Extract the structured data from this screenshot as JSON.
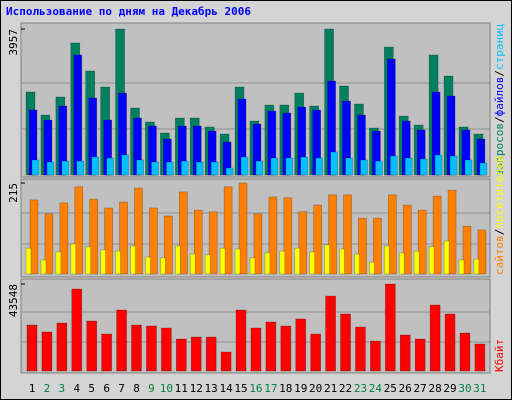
{
  "title": "Использование по дням на Декабрь 2006",
  "categories": [
    "1",
    "2",
    "3",
    "4",
    "5",
    "6",
    "7",
    "8",
    "9",
    "10",
    "11",
    "12",
    "13",
    "14",
    "15",
    "16",
    "17",
    "18",
    "19",
    "20",
    "21",
    "22",
    "23",
    "24",
    "25",
    "26",
    "27",
    "28",
    "29",
    "30",
    "31"
  ],
  "category_colors": [
    "#000000",
    "#008040",
    "#008040",
    "#000000",
    "#000000",
    "#000000",
    "#000000",
    "#000000",
    "#008040",
    "#008040",
    "#000000",
    "#000000",
    "#000000",
    "#000000",
    "#000000",
    "#008040",
    "#008040",
    "#000000",
    "#000000",
    "#000000",
    "#000000",
    "#000000",
    "#008040",
    "#008040",
    "#000000",
    "#000000",
    "#000000",
    "#000000",
    "#000000",
    "#008040",
    "#008040"
  ],
  "chart_data": [
    {
      "type": "bar",
      "ylim": [
        0,
        3957
      ],
      "yticks": [
        3957
      ],
      "legend_separator": "/",
      "series": [
        {
          "name": "запросов",
          "color": "#008060",
          "values": [
            2249,
            1626,
            2114,
            3578,
            2819,
            2385,
            3957,
            1816,
            1436,
            1138,
            1545,
            1545,
            1301,
            1111,
            2385,
            1463,
            1897,
            1897,
            2222,
            1870,
            3957,
            2412,
            1924,
            1274,
            3469,
            1599,
            1355,
            3252,
            2683,
            1301,
            1111
          ]
        },
        {
          "name": "файлов",
          "color": "#0000ff",
          "values": [
            1762,
            1491,
            1870,
            3252,
            2087,
            1491,
            2222,
            1545,
            1328,
            976,
            1328,
            1328,
            1192,
            894,
            2060,
            1382,
            1734,
            1680,
            1843,
            1762,
            2547,
            2005,
            1626,
            1192,
            3144,
            1463,
            1220,
            2249,
            2141,
            1220,
            976
          ]
        },
        {
          "name": "страниц",
          "color": "#00c0ff",
          "values": [
            407,
            352,
            379,
            379,
            488,
            461,
            542,
            407,
            352,
            352,
            379,
            352,
            352,
            190,
            488,
            379,
            461,
            461,
            488,
            461,
            623,
            461,
            407,
            379,
            515,
            461,
            434,
            542,
            515,
            407,
            325
          ]
        }
      ]
    },
    {
      "type": "bar",
      "ylim": [
        0,
        215
      ],
      "yticks": [
        215
      ],
      "legend_separator": "/",
      "series": [
        {
          "name": "сайтов",
          "color": "#ff8000",
          "values": [
            175,
            142,
            168,
            206,
            177,
            156,
            170,
            203,
            156,
            137,
            194,
            151,
            147,
            206,
            215,
            142,
            182,
            180,
            147,
            163,
            187,
            187,
            132,
            132,
            187,
            163,
            151,
            184,
            198,
            113,
            104
          ]
        },
        {
          "name": "посетителей",
          "color": "#ffff00",
          "values": [
            61,
            33,
            52,
            71,
            64,
            57,
            54,
            66,
            40,
            38,
            66,
            47,
            45,
            61,
            59,
            38,
            50,
            54,
            61,
            52,
            69,
            59,
            47,
            28,
            66,
            50,
            54,
            64,
            78,
            33,
            35
          ]
        }
      ]
    },
    {
      "type": "bar",
      "ylim": [
        0,
        43548
      ],
      "yticks": [
        43548
      ],
      "legend_separator": "/",
      "series": [
        {
          "name": "Кбайт",
          "color": "#ff0000",
          "values": [
            23028,
            19523,
            24029,
            41049,
            25030,
            18522,
            30537,
            23028,
            22527,
            21526,
            16019,
            17020,
            17020,
            9511,
            30537,
            21526,
            24529,
            22527,
            26031,
            18522,
            37545,
            28534,
            22026,
            15018,
            43548,
            18022,
            16019,
            33040,
            28534,
            19023,
            13516
          ]
        }
      ]
    }
  ]
}
